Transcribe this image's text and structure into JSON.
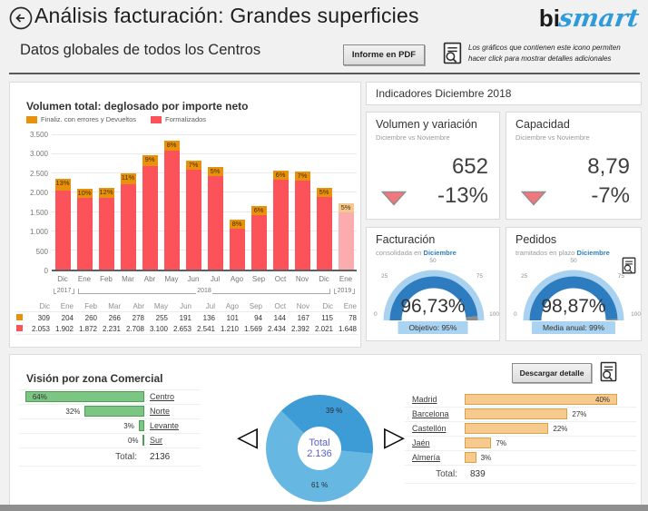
{
  "header": {
    "title": "Análisis facturación: Grandes superficies",
    "subtitle": "Datos globales de todos los Centros",
    "pdf_button_label": "Informe en PDF",
    "note_line1": "Los gráficos que contienen este icono permiten",
    "note_line2": "hacer click para mostrar detalles adicionales",
    "logo_part1": "bi",
    "logo_part2": "smart"
  },
  "colors": {
    "bar_red": "#FB5359",
    "bar_orange": "#E8910C",
    "bar_red_faded": "#FBACAE",
    "bar_orange_faded": "#F3C78E",
    "gauge_blue": "#2E7CC0",
    "gauge_track": "#A8D2EF",
    "badge_bg": "#A9D3F1",
    "donut_dark": "#3D9BD5",
    "donut_light": "#67B7E3",
    "donut_center_text": "#5B5ED8",
    "green_bar": "#7CC683",
    "orange_bar": "#F6C98E",
    "kpi_triangle": "#F2777C",
    "logo_blue": "#2F9BDB"
  },
  "volumen_panel": {
    "title": "Volumen total: deglosado por importe neto",
    "legend": [
      {
        "label": "Finaliz. con errores y Devueltos"
      },
      {
        "label": "Formalizados"
      }
    ]
  },
  "indicadores": {
    "header": "Indicadores Diciembre 2018",
    "kpis": [
      {
        "title": "Volumen y variación",
        "subtitle": "Diciembre vs Noviembre",
        "value": "652",
        "delta": "-13%"
      },
      {
        "title": "Capacidad",
        "subtitle": "Diciembre vs Noviembre",
        "value": "8,79",
        "delta": "-7%"
      }
    ],
    "gauges": [
      {
        "title": "Facturación",
        "subtitle_prefix": "consolidada en ",
        "subtitle_month": "Diciembre",
        "display_value": "96,73%",
        "badge": "Objetivo: 95%"
      },
      {
        "title": "Pedidos",
        "subtitle_prefix": "tramitados en plazo ",
        "subtitle_month": "Diciembre",
        "display_value": "98,87%",
        "badge": "Media anual: 99%"
      }
    ]
  },
  "zonas_panel": {
    "title": "Visión por zona Comercial",
    "download_button_label": "Descargar detalle",
    "left_total_label": "Total:",
    "left_total_value": "2136",
    "right_total_label": "Total:",
    "right_total_value": "839",
    "donut_center_label": "Total",
    "donut_center_value": "2.136"
  },
  "chart_data": [
    {
      "id": "volumen_mensual",
      "type": "bar",
      "stacked": true,
      "title": "Volumen total: deglosado por importe neto",
      "categories": [
        "Dic",
        "Ene",
        "Feb",
        "Mar",
        "Abr",
        "May",
        "Jun",
        "Jul",
        "Ago",
        "Sep",
        "Oct",
        "Nov",
        "Dic",
        "Ene"
      ],
      "year_groups": [
        {
          "label": "2017",
          "span": 1
        },
        {
          "label": "2018",
          "span": 12
        },
        {
          "label": "2019",
          "span": 1
        }
      ],
      "series": [
        {
          "name": "Finaliz. con errores y Devueltos",
          "color": "#E8910C",
          "values": [
            309,
            204,
            260,
            266,
            278,
            255,
            191,
            136,
            101,
            94,
            144,
            167,
            115,
            78
          ]
        },
        {
          "name": "Formalizados",
          "color": "#FB5359",
          "values": [
            2053,
            1902,
            1872,
            2231,
            2708,
            3100,
            2653,
            2541,
            1210,
            1569,
            2434,
            2392,
            2021,
            1648
          ]
        }
      ],
      "bar_pct_labels": [
        "13%",
        "10%",
        "12%",
        "11%",
        "9%",
        "8%",
        "7%",
        "5%",
        "8%",
        "6%",
        "6%",
        "7%",
        "5%",
        "5%"
      ],
      "table_rows": [
        [
          "309",
          "204",
          "260",
          "266",
          "278",
          "255",
          "191",
          "136",
          "101",
          "94",
          "144",
          "167",
          "115",
          "78"
        ],
        [
          "2.053",
          "1.902",
          "1.872",
          "2.231",
          "2.708",
          "3.100",
          "2.653",
          "2.541",
          "1.210",
          "1.569",
          "2.434",
          "2.392",
          "2.021",
          "1.648"
        ]
      ],
      "ylim": [
        0,
        3500
      ],
      "yticks": [
        "3.500",
        "3.000",
        "2.500",
        "2.000",
        "1.500",
        "1.000",
        "500",
        "0"
      ],
      "last_bar_faded": true
    },
    {
      "id": "gauge_facturacion",
      "type": "gauge",
      "value": 96.73,
      "display": "96,73%",
      "min": 0,
      "max": 100,
      "ticks": [
        "0",
        "25",
        "50",
        "75",
        "100"
      ],
      "target_label": "Objetivo: 95%"
    },
    {
      "id": "gauge_pedidos",
      "type": "gauge",
      "value": 98.87,
      "display": "98,87%",
      "min": 0,
      "max": 100,
      "ticks": [
        "0",
        "25",
        "50",
        "75",
        "100"
      ],
      "target_label": "Media anual: 99%"
    },
    {
      "id": "zonas_izquierda",
      "type": "bar",
      "orientation": "horizontal",
      "categories": [
        "Centro",
        "Norte",
        "Levante",
        "Sur"
      ],
      "values": [
        64,
        32,
        3,
        0
      ],
      "unit": "%",
      "total": 2136
    },
    {
      "id": "zonas_donut",
      "type": "pie",
      "labels": [
        "39 %",
        "61 %"
      ],
      "values": [
        39,
        61
      ],
      "start_angle_deg": 315,
      "center_label": "Total",
      "center_value": "2.136"
    },
    {
      "id": "zonas_derecha",
      "type": "bar",
      "orientation": "horizontal",
      "categories": [
        "Madrid",
        "Barcelona",
        "Castellón",
        "Jaén",
        "Almería"
      ],
      "values": [
        40,
        27,
        22,
        7,
        3
      ],
      "unit": "%",
      "total": 839
    }
  ]
}
